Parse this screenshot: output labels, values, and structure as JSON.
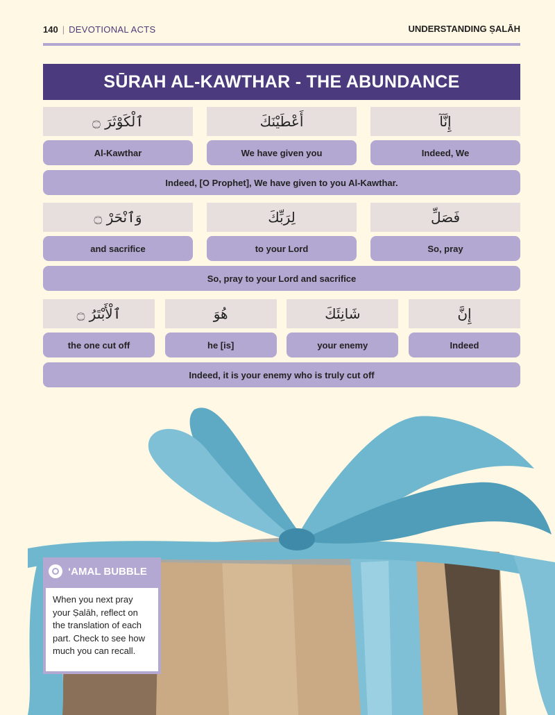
{
  "header": {
    "page_number": "140",
    "section": "DEVOTIONAL ACTS",
    "chapter": "UNDERSTANDING ṢALĀH"
  },
  "title": "SŪRAH AL-KAWTHAR - THE ABUNDANCE",
  "verses": [
    {
      "words": [
        {
          "arabic": "إِنَّآ",
          "english": "Indeed, We"
        },
        {
          "arabic": "أَعْطَيْنَكَ",
          "english": "We have given you"
        },
        {
          "arabic": "ٱلْكَوْثَرَ ۝",
          "english": "Al-Kawthar"
        }
      ],
      "translation": "Indeed, [O Prophet], We have given to you Al-Kawthar."
    },
    {
      "words": [
        {
          "arabic": "فَصَلِّ",
          "english": "So, pray"
        },
        {
          "arabic": "لِرَبِّكَ",
          "english": "to your Lord"
        },
        {
          "arabic": "وَٱنْحَرْ ۝",
          "english": "and sacrifice"
        }
      ],
      "translation": "So, pray to your Lord and sacrifice"
    },
    {
      "words": [
        {
          "arabic": "إِنَّ",
          "english": "Indeed"
        },
        {
          "arabic": "شَانِئَكَ",
          "english": "your enemy"
        },
        {
          "arabic": "هُوَ",
          "english": "he [is]"
        },
        {
          "arabic": "ٱلْأَبْتَرُ ۝",
          "english": "the one cut off"
        }
      ],
      "translation": "Indeed, it is your enemy who is truly cut off"
    }
  ],
  "amal_bubble": {
    "icon": "bubble-icon",
    "heading": "‘AMAL BUBBLE",
    "text": "When you next pray your Ṣalāh, reflect on the translation of each part. Check to see how much you can recall."
  },
  "colors": {
    "background": "#fff8e4",
    "title_bar": "#4b3a7d",
    "lavender": "#b3a8d1",
    "arabic_cell": "#e7dfde",
    "ribbon": "#6fb7cf",
    "box": "#b89a78"
  }
}
